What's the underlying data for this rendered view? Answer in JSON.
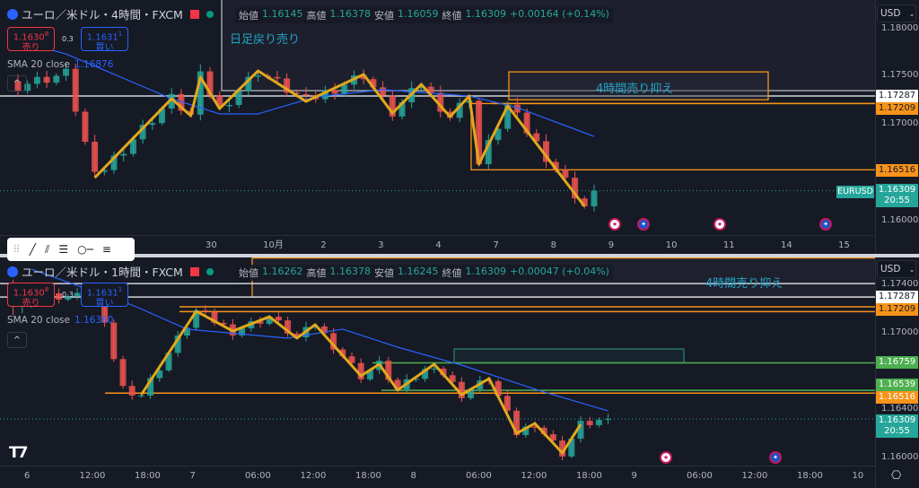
{
  "top_chart": {
    "legend": {
      "symbol": "ユーロ／米ドル・4時間・FXCM",
      "open_label": "始値",
      "open": "1.16145",
      "high_label": "高値",
      "high": "1.16378",
      "low_label": "安値",
      "low": "1.16059",
      "close_label": "終値",
      "close": "1.16309",
      "change": "+0.00164 (+0.14%)"
    },
    "sell": {
      "price": "1.1630",
      "sup": "8",
      "label": "売り"
    },
    "spread": "0.3",
    "buy": {
      "price": "1.1631",
      "sup": "1",
      "label": "買い"
    },
    "sma": {
      "label": "SMA 20 close",
      "value": "1.16876"
    },
    "annotations": [
      "日足戻り売り",
      "4時間売り抑え"
    ],
    "currency": "USD",
    "price_ticks": [
      1.18,
      1.175,
      1.17,
      1.16
    ],
    "price_tags": [
      {
        "value": "1.17287",
        "color": "#ffffff",
        "text": "#131722"
      },
      {
        "value": "1.17209",
        "color": "#f7931a",
        "text": "#131722"
      },
      {
        "value": "1.16516",
        "color": "#f7931a",
        "text": "#131722"
      }
    ],
    "last": {
      "symbol": "EURUSD",
      "price": "1.16309",
      "countdown": "20:55"
    },
    "time_ticks": [
      "30",
      "10月",
      "2",
      "3",
      "4",
      "7",
      "8",
      "9",
      "10",
      "11",
      "14",
      "15"
    ]
  },
  "bottom_chart": {
    "legend": {
      "symbol": "ユーロ／米ドル・1時間・FXCM",
      "open_label": "始値",
      "open": "1.16262",
      "high_label": "高値",
      "high": "1.16378",
      "low_label": "安値",
      "low": "1.16245",
      "close_label": "終値",
      "close": "1.16309",
      "change": "+0.00047 (+0.04%)"
    },
    "sell": {
      "price": "1.1630",
      "sup": "8",
      "label": "売り"
    },
    "spread": "0.3",
    "buy": {
      "price": "1.1631",
      "sup": "1",
      "label": "買い"
    },
    "sma": {
      "label": "SMA 20 close",
      "value": "1.16360"
    },
    "annotations": [
      "4時間売り抑え"
    ],
    "currency": "USD",
    "price_ticks": [
      1.174,
      1.17,
      1.164,
      1.16
    ],
    "price_tags": [
      {
        "value": "1.17287",
        "color": "#ffffff",
        "text": "#131722"
      },
      {
        "value": "1.17209",
        "color": "#f7931a",
        "text": "#131722"
      },
      {
        "value": "1.16759",
        "color": "#4caf50",
        "text": "#ffffff"
      },
      {
        "value": "1.16539",
        "color": "#4caf50",
        "text": "#ffffff"
      },
      {
        "value": "1.16516",
        "color": "#f7931a",
        "text": "#ffffff"
      }
    ],
    "last": {
      "price": "1.16309",
      "countdown": "20:55"
    },
    "time_ticks": [
      "6",
      "12:00",
      "18:00",
      "7",
      "06:00",
      "12:00",
      "18:00",
      "8",
      "06:00",
      "12:00",
      "18:00",
      "9",
      "06:00",
      "12:00",
      "18:00",
      "10"
    ]
  },
  "colors": {
    "up": "#26a69a",
    "down": "#ef5350",
    "zigzag": "#e0a81c",
    "sma": "#2962ff",
    "box_orange": "#f7931a",
    "box_green": "#4caf50",
    "box_gray": "#b2b5be"
  },
  "toolbar_icons": [
    "drag-handle-icon",
    "trend-line-icon",
    "parallel-channel-icon",
    "fib-retracement-icon",
    "horizontal-ray-icon",
    "horizontal-lines-icon"
  ],
  "chart_data": [
    {
      "type": "candlestick",
      "timeframe": "4時間",
      "x_unit": "bar",
      "close_pivots": [
        [
          0,
          1.174
        ],
        [
          5,
          1.1752
        ],
        [
          8,
          1.16444
        ],
        [
          16,
          1.17259
        ],
        [
          18,
          1.17083
        ],
        [
          19,
          1.17481
        ],
        [
          21,
          1.17157
        ],
        [
          25,
          1.17546
        ],
        [
          30,
          1.17231
        ],
        [
          36,
          1.17509
        ],
        [
          39,
          1.17111
        ],
        [
          42,
          1.17407
        ],
        [
          45,
          1.17074
        ],
        [
          47,
          1.17287
        ],
        [
          48,
          1.16583
        ],
        [
          51,
          1.17185
        ],
        [
          59,
          1.16148
        ],
        [
          60,
          1.16309
        ]
      ],
      "zigzag": [
        [
          8,
          1.16444
        ],
        [
          16,
          1.17259
        ],
        [
          18,
          1.17083
        ],
        [
          19,
          1.17481
        ],
        [
          21,
          1.17157
        ],
        [
          25,
          1.17546
        ],
        [
          30,
          1.17231
        ],
        [
          36,
          1.17509
        ],
        [
          39,
          1.17111
        ],
        [
          42,
          1.17407
        ],
        [
          45,
          1.17074
        ],
        [
          47,
          1.17287
        ],
        [
          48,
          1.16583
        ],
        [
          51,
          1.17185
        ],
        [
          59,
          1.16148
        ]
      ],
      "sma20": [
        [
          0,
          1.1785
        ],
        [
          5,
          1.17722
        ],
        [
          16,
          1.17259
        ],
        [
          21,
          1.17102
        ],
        [
          25,
          1.17102
        ],
        [
          31,
          1.17278
        ],
        [
          38,
          1.17352
        ],
        [
          47,
          1.17287
        ],
        [
          52,
          1.17167
        ],
        [
          60,
          1.1687
        ]
      ],
      "levels": [
        1.17287,
        1.17209,
        1.16516
      ],
      "y_range": [
        1.1578,
        1.183
      ]
    },
    {
      "type": "candlestick",
      "timeframe": "1時間",
      "close_pivots": [
        [
          "6 04:00",
          1.173
        ],
        [
          "6 13:00",
          1.1729
        ],
        [
          "6 16:00",
          1.1656
        ],
        [
          "6 18:00",
          1.16504
        ],
        [
          "7 00:00",
          1.17173
        ],
        [
          "7 04:00",
          1.17014
        ],
        [
          "7 08:00",
          1.17129
        ],
        [
          "7 11:00",
          1.16957
        ],
        [
          "7 13:00",
          1.17065
        ],
        [
          "7 18:00",
          1.16655
        ],
        [
          "7 20:00",
          1.16748
        ],
        [
          "7 22:00",
          1.1654
        ],
        [
          "8 02:00",
          1.16748
        ],
        [
          "8 05:00",
          1.16504
        ],
        [
          "8 08:00",
          1.16633
        ],
        [
          "8 11:00",
          1.16194
        ],
        [
          "8 13:00",
          1.16273
        ],
        [
          "8 16:00",
          1.16036
        ],
        [
          "8 18:00",
          1.16266
        ],
        [
          "8 21:00",
          1.16309
        ]
      ],
      "zigzag": [
        [
          "6 18:00",
          1.16504
        ],
        [
          "7 00:00",
          1.17173
        ],
        [
          "7 04:00",
          1.17014
        ],
        [
          "7 08:00",
          1.17129
        ],
        [
          "7 11:00",
          1.16957
        ],
        [
          "7 13:00",
          1.17065
        ],
        [
          "7 18:00",
          1.16655
        ],
        [
          "7 20:00",
          1.16748
        ],
        [
          "7 22:00",
          1.1654
        ],
        [
          "8 02:00",
          1.16748
        ],
        [
          "8 05:00",
          1.16504
        ],
        [
          "8 08:00",
          1.16633
        ],
        [
          "8 11:00",
          1.16194
        ],
        [
          "8 13:00",
          1.16273
        ],
        [
          "8 16:00",
          1.16036
        ],
        [
          "8 18:00",
          1.16266
        ]
      ],
      "sma20": [
        [
          "6 06:00",
          1.1751
        ],
        [
          "6 17:00",
          1.17223
        ],
        [
          "6 23:00",
          1.17029
        ],
        [
          "7 10:00",
          1.16957
        ],
        [
          "7 16:00",
          1.17029
        ],
        [
          "7 22:00",
          1.16885
        ],
        [
          "8 05:00",
          1.16741
        ],
        [
          "8 14:00",
          1.16525
        ],
        [
          "8 21:00",
          1.16374
        ]
      ],
      "levels": [
        1.17287,
        1.17209,
        1.16759,
        1.16539,
        1.16516
      ],
      "y_range": [
        1.1593,
        1.1755
      ]
    }
  ]
}
